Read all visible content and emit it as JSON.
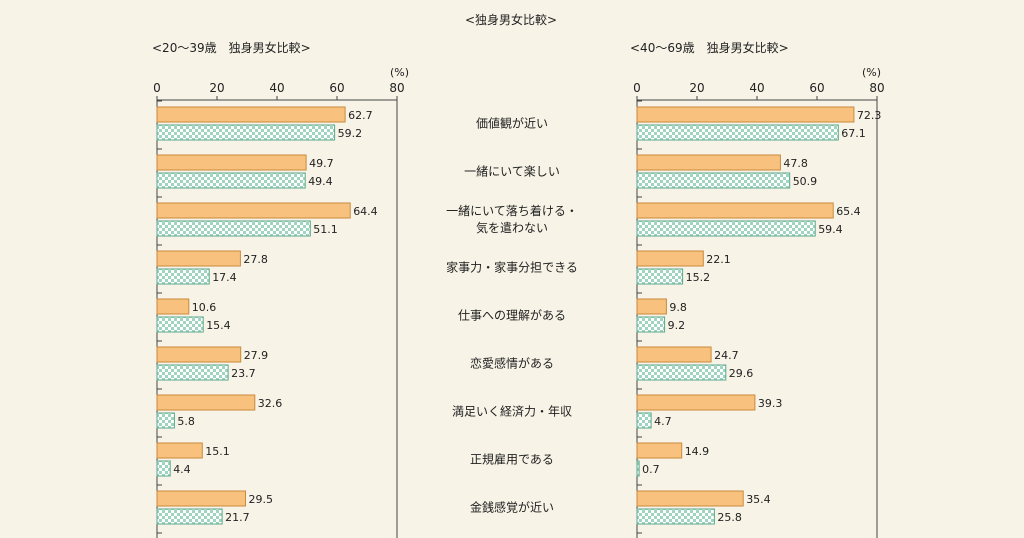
{
  "overall_title": "<独身男女比較>",
  "chart_data": [
    {
      "type": "bar",
      "orientation": "horizontal",
      "title": "<20～39歳　独身男女比較>",
      "unit": "(%)",
      "xlim": [
        0,
        80
      ],
      "ticks": [
        0,
        20,
        40,
        60,
        80
      ],
      "categories": [
        "価値観が近い",
        "一緒にいて楽しい",
        "一緒にいて落ち着ける・気を遣わない",
        "家事力・家事分担できる",
        "仕事への理解がある",
        "恋愛感情がある",
        "満足いく経済力・年収",
        "正規雇用である",
        "金銭感覚が近い"
      ],
      "series": [
        {
          "values": [
            62.7,
            49.7,
            64.4,
            27.8,
            10.6,
            27.9,
            32.6,
            15.1,
            29.5
          ],
          "labels": [
            "62.7",
            "49.7",
            "64.4",
            "27.8",
            "10.6",
            "27.9",
            "32.6",
            "15.1",
            "29.5"
          ],
          "color": "#f8c27e",
          "stroke": "#c98a3c",
          "pattern": "solid"
        },
        {
          "values": [
            59.2,
            49.4,
            51.1,
            17.4,
            15.4,
            23.7,
            5.8,
            4.4,
            21.7
          ],
          "labels": [
            "59.2",
            "49.4",
            "51.1",
            "17.4",
            "15.4",
            "23.7",
            "5.8",
            "4.4",
            "21.7"
          ],
          "color": "#9fd5c0",
          "stroke": "#5aa88c",
          "pattern": "checker"
        }
      ]
    },
    {
      "type": "bar",
      "orientation": "horizontal",
      "title": "<40～69歳　独身男女比較>",
      "unit": "(%)",
      "xlim": [
        0,
        80
      ],
      "ticks": [
        0,
        20,
        40,
        60,
        80
      ],
      "categories": [
        "価値観が近い",
        "一緒にいて楽しい",
        "一緒にいて落ち着ける・気を遣わない",
        "家事力・家事分担できる",
        "仕事への理解がある",
        "恋愛感情がある",
        "満足いく経済力・年収",
        "正規雇用である",
        "金銭感覚が近い"
      ],
      "series": [
        {
          "values": [
            72.3,
            47.8,
            65.4,
            22.1,
            9.8,
            24.7,
            39.3,
            14.9,
            35.4
          ],
          "labels": [
            "72.3",
            "47.8",
            "65.4",
            "22.1",
            "9.8",
            "24.7",
            "39.3",
            "14.9",
            "35.4"
          ],
          "color": "#f8c27e",
          "stroke": "#c98a3c",
          "pattern": "solid"
        },
        {
          "values": [
            67.1,
            50.9,
            59.4,
            15.2,
            9.2,
            29.6,
            4.7,
            0.7,
            25.8
          ],
          "labels": [
            "67.1",
            "50.9",
            "59.4",
            "15.2",
            "9.2",
            "29.6",
            "4.7",
            "0.7",
            "25.8"
          ],
          "color": "#9fd5c0",
          "stroke": "#5aa88c",
          "pattern": "checker"
        }
      ]
    }
  ],
  "category_display": [
    [
      "価値観が近い"
    ],
    [
      "一緒にいて楽しい"
    ],
    [
      "一緒にいて落ち着ける・",
      "気を遣わない"
    ],
    [
      "家事力・家事分担できる"
    ],
    [
      "仕事への理解がある"
    ],
    [
      "恋愛感情がある"
    ],
    [
      "満足いく経済力・年収"
    ],
    [
      "正規雇用である"
    ],
    [
      "金銭感覚が近い"
    ]
  ]
}
